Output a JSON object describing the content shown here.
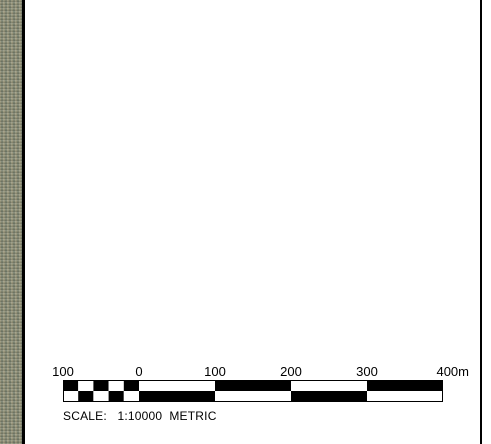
{
  "map": {
    "scale_bar": {
      "ticks": [
        {
          "value": -100,
          "label": "100"
        },
        {
          "value": 0,
          "label": "0"
        },
        {
          "value": 100,
          "label": "100"
        },
        {
          "value": 200,
          "label": "200"
        },
        {
          "value": 300,
          "label": "300"
        },
        {
          "value": 400,
          "label": "400m"
        }
      ],
      "fill_color": "#000000",
      "empty_color": "#ffffff"
    },
    "scale_label": "SCALE:",
    "scale_ratio": "1:10000",
    "scale_system": "METRIC"
  }
}
